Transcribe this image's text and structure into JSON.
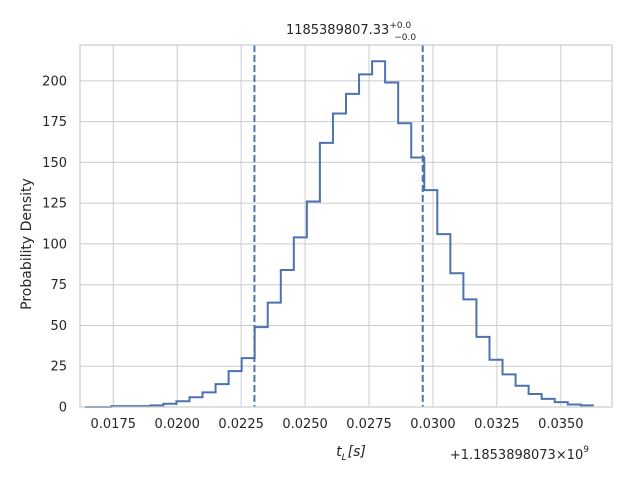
{
  "chart_data": {
    "type": "histogram",
    "title": {
      "value": "1185389807.33",
      "upper": "+0.0",
      "lower": "−0.0"
    },
    "xlabel": {
      "var": "t",
      "sub": "L",
      "unit": "[s]"
    },
    "ylabel": "Probability Density",
    "x_offset_label": {
      "prefix": "+1.1853898073×10",
      "exponent": "9"
    },
    "xlim": [
      0.0162,
      0.037
    ],
    "ylim": [
      0,
      222
    ],
    "x_ticks": [
      0.0175,
      0.02,
      0.0225,
      0.025,
      0.0275,
      0.03,
      0.0325,
      0.035
    ],
    "x_tick_labels": [
      "0.0175",
      "0.0200",
      "0.0225",
      "0.0250",
      "0.0275",
      "0.0300",
      "0.0325",
      "0.0350"
    ],
    "y_ticks": [
      0,
      25,
      50,
      75,
      100,
      125,
      150,
      175,
      200
    ],
    "y_tick_labels": [
      "0",
      "25",
      "50",
      "75",
      "100",
      "125",
      "150",
      "175",
      "200"
    ],
    "bin_edges": [
      0.0164,
      0.01691,
      0.01742,
      0.01793,
      0.01844,
      0.01895,
      0.01946,
      0.01997,
      0.02048,
      0.02099,
      0.0215,
      0.02201,
      0.02252,
      0.02303,
      0.02354,
      0.02405,
      0.02456,
      0.02507,
      0.02558,
      0.02609,
      0.0266,
      0.02711,
      0.02762,
      0.02813,
      0.02864,
      0.02915,
      0.02966,
      0.03017,
      0.03068,
      0.03119,
      0.0317,
      0.03221,
      0.03272,
      0.03323,
      0.03374,
      0.03425,
      0.03476,
      0.03527,
      0.03578,
      0.03629
    ],
    "density": [
      0,
      0,
      0.5,
      0.5,
      0.5,
      1,
      2,
      3.5,
      6,
      9,
      14,
      22,
      30,
      49,
      64,
      84,
      104,
      126,
      162,
      180,
      192,
      204,
      212,
      199,
      174,
      153,
      133,
      106,
      82,
      66,
      43,
      29,
      20,
      13,
      8,
      5,
      3,
      1.5,
      1
    ],
    "vlines": [
      0.02302,
      0.0296
    ],
    "grid": true,
    "colors": {
      "line": "#4c72b0",
      "grid": "#cccccc",
      "text": "#262626"
    }
  }
}
